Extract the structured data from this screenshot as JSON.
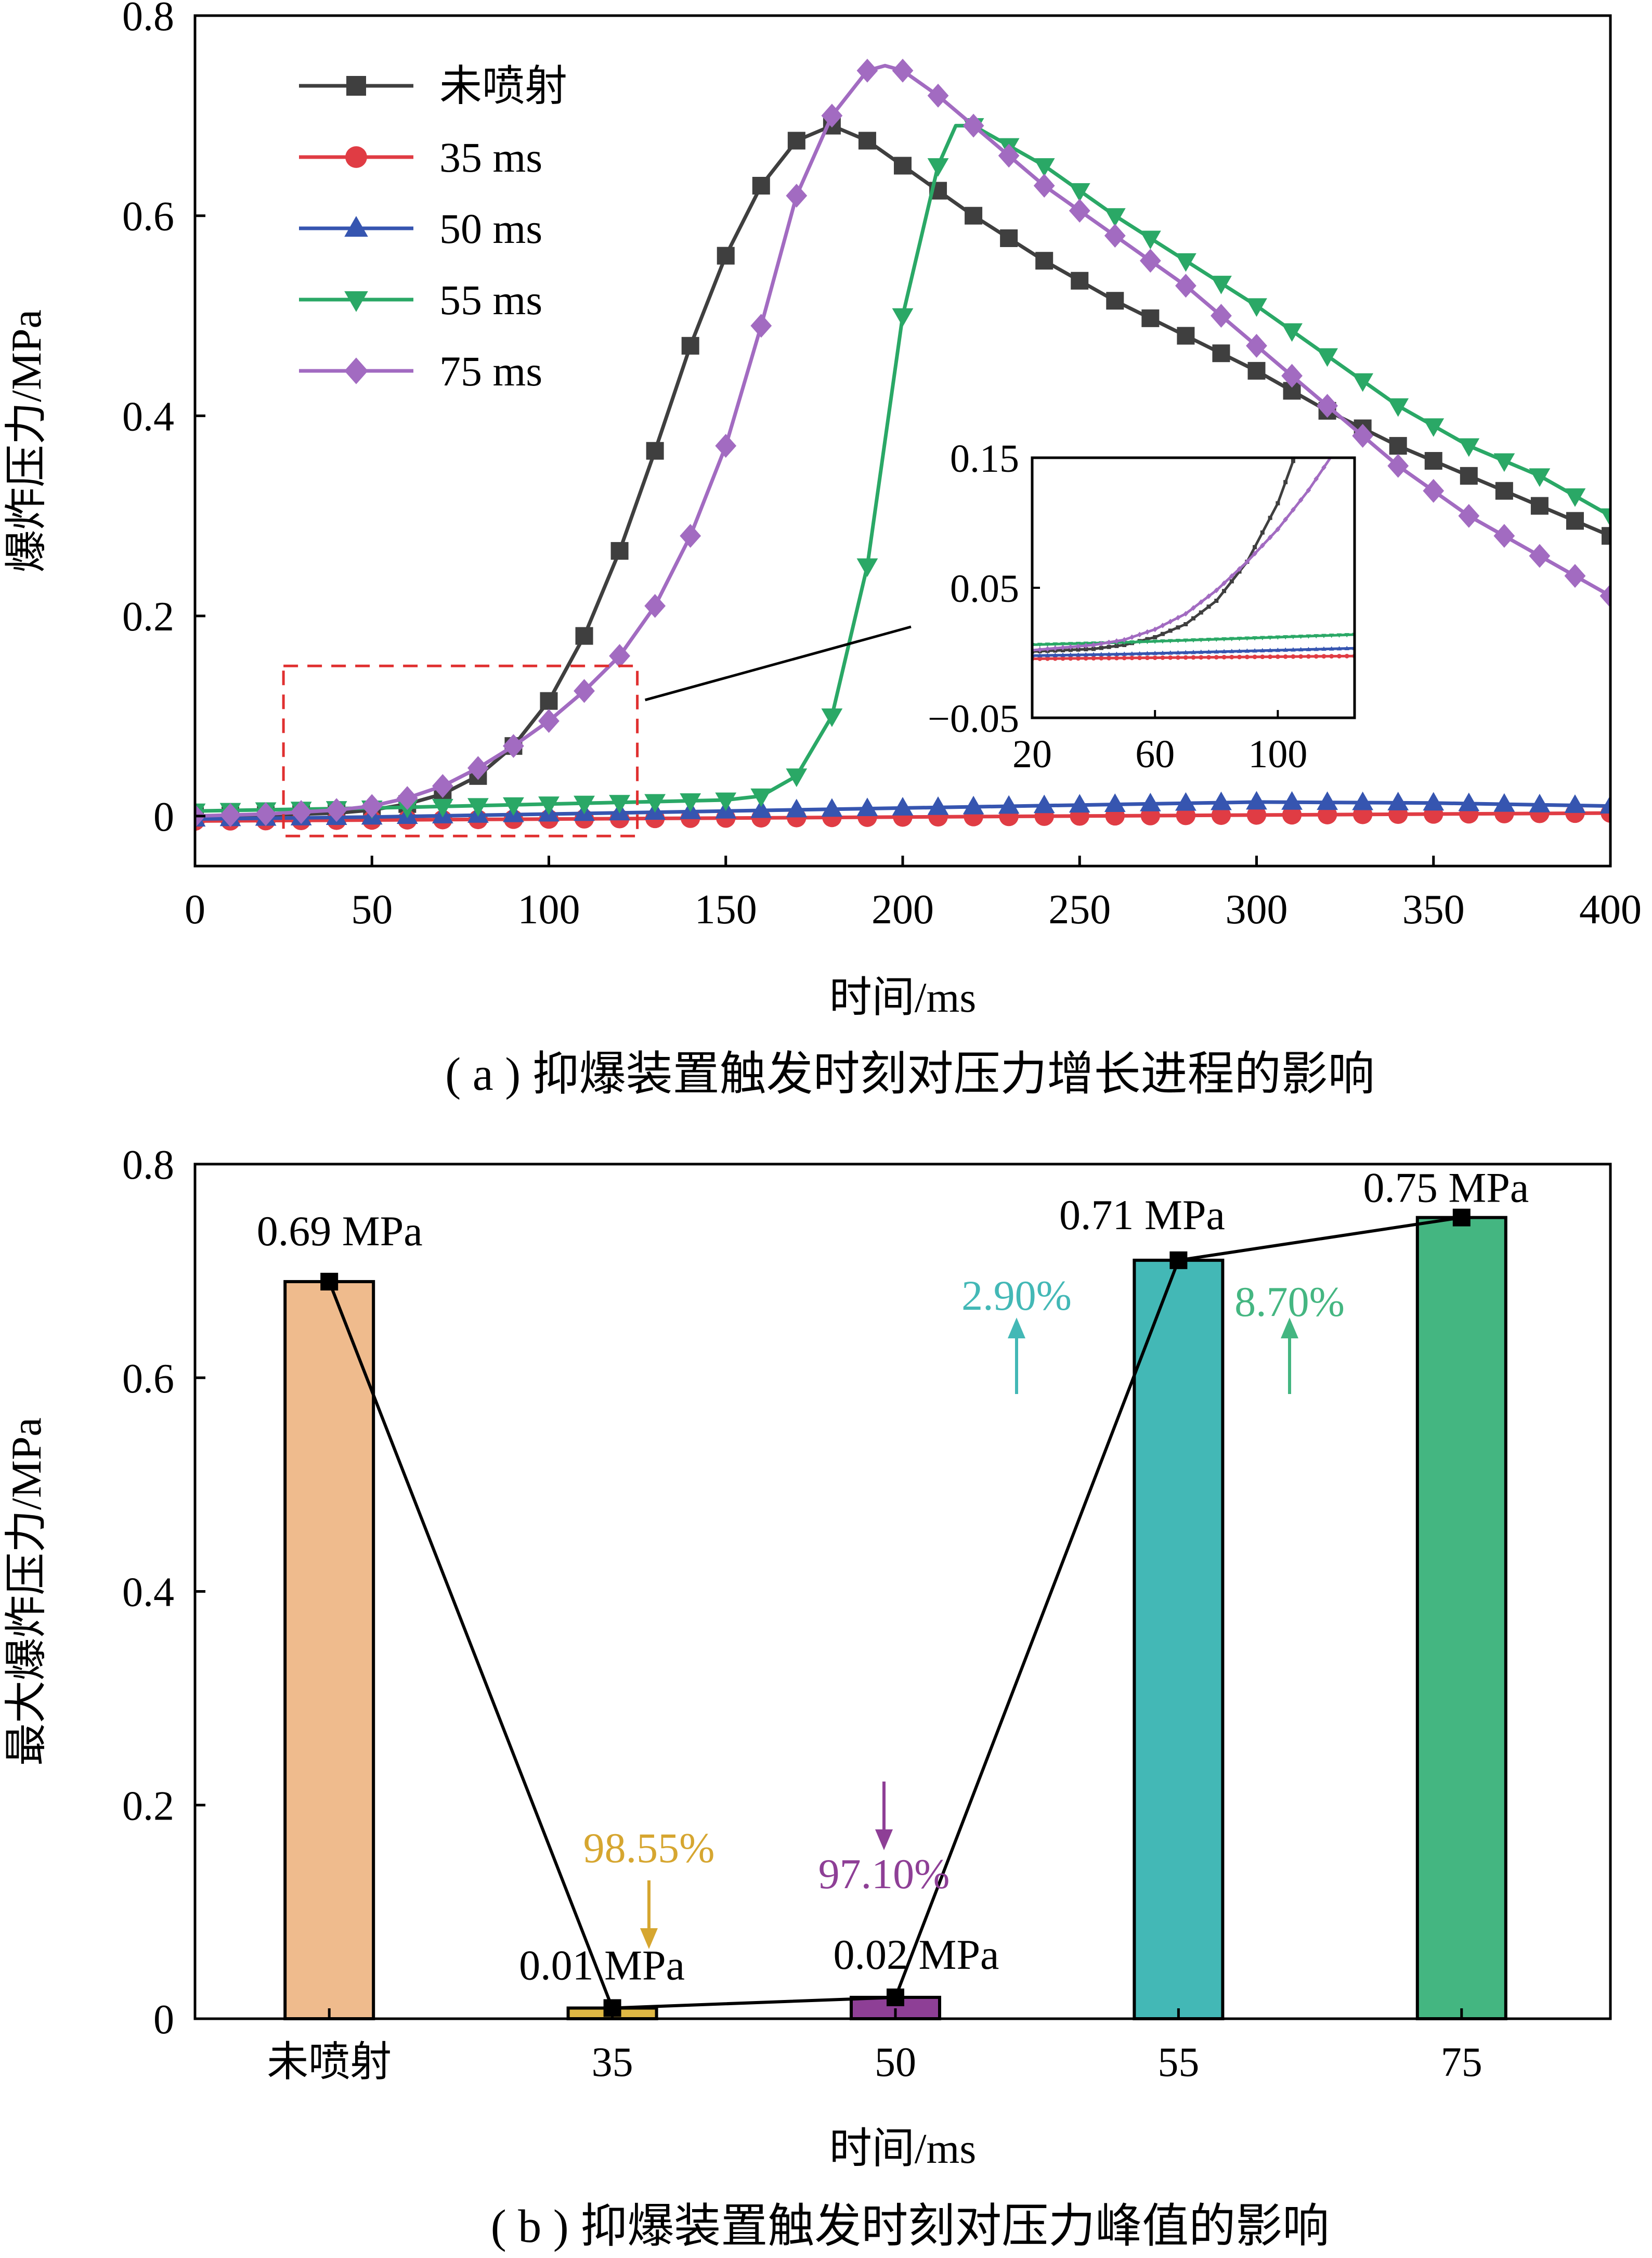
{
  "colors": {
    "unsprayed": "#3f3f3f",
    "ms35": "#e03c44",
    "ms50": "#3655b0",
    "ms55": "#2aa866",
    "ms75": "#a26bc1",
    "box": "#e03030",
    "bar_unsprayed": "#efbb8d",
    "bar_35": "#e0b844",
    "bar_50": "#8e3f96",
    "bar_55": "#43b8b6",
    "bar_75": "#44b681",
    "pct_35": "#d6a630",
    "pct_50": "#8e3f96",
    "pct_55": "#43b8b6",
    "pct_75": "#44b681"
  },
  "chart_data": [
    {
      "type": "line",
      "caption": "( a ) 抑爆装置触发时刻对压力增长进程的影响",
      "xlabel": "时间/ms",
      "ylabel": "爆炸压力/MPa",
      "xlim": [
        0,
        400
      ],
      "ylim": [
        -0.05,
        0.8
      ],
      "xticks": [
        0,
        50,
        100,
        150,
        200,
        250,
        300,
        350,
        400
      ],
      "yticks": [
        0,
        0.2,
        0.4,
        0.6,
        0.8
      ],
      "ytick_labels": [
        "0",
        "0.2",
        "0.4",
        "0.6",
        "0.8"
      ],
      "legend_position": "top-left",
      "series": [
        {
          "name": "未喷射",
          "color_key": "unsprayed",
          "marker": "square",
          "x": [
            0,
            20,
            40,
            50,
            60,
            70,
            80,
            90,
            100,
            110,
            120,
            130,
            140,
            150,
            160,
            170,
            180,
            190,
            200,
            220,
            240,
            260,
            280,
            300,
            320,
            340,
            360,
            380,
            400
          ],
          "y": [
            0,
            0.001,
            0.003,
            0.006,
            0.012,
            0.022,
            0.04,
            0.07,
            0.115,
            0.18,
            0.265,
            0.365,
            0.47,
            0.56,
            0.63,
            0.675,
            0.69,
            0.675,
            0.65,
            0.6,
            0.555,
            0.515,
            0.48,
            0.445,
            0.405,
            0.37,
            0.34,
            0.31,
            0.28
          ]
        },
        {
          "name": "35 ms",
          "color_key": "ms35",
          "marker": "circle",
          "x": [
            0,
            50,
            100,
            150,
            200,
            250,
            300,
            350,
            400
          ],
          "y": [
            -0.005,
            -0.004,
            -0.003,
            -0.002,
            -0.001,
            0,
            0.001,
            0.002,
            0.003
          ]
        },
        {
          "name": "50 ms",
          "color_key": "ms50",
          "marker": "triangle-up",
          "x": [
            0,
            50,
            100,
            150,
            200,
            250,
            300,
            350,
            400
          ],
          "y": [
            -0.003,
            -0.001,
            0.002,
            0.005,
            0.008,
            0.011,
            0.014,
            0.013,
            0.01
          ]
        },
        {
          "name": "55 ms",
          "color_key": "ms55",
          "marker": "triangle-down",
          "x": [
            0,
            50,
            100,
            150,
            160,
            170,
            180,
            190,
            200,
            210,
            215,
            220,
            240,
            260,
            280,
            300,
            320,
            340,
            360,
            380,
            400
          ],
          "y": [
            0.005,
            0.008,
            0.012,
            0.016,
            0.02,
            0.04,
            0.1,
            0.25,
            0.5,
            0.65,
            0.69,
            0.69,
            0.65,
            0.6,
            0.555,
            0.51,
            0.46,
            0.41,
            0.37,
            0.34,
            0.3
          ]
        },
        {
          "name": "75 ms",
          "color_key": "ms75",
          "marker": "diamond",
          "x": [
            0,
            20,
            40,
            50,
            60,
            70,
            80,
            90,
            100,
            110,
            120,
            130,
            140,
            150,
            160,
            170,
            180,
            190,
            195,
            200,
            210,
            220,
            240,
            260,
            280,
            300,
            320,
            340,
            360,
            380,
            400
          ],
          "y": [
            0,
            0.002,
            0.006,
            0.01,
            0.018,
            0.03,
            0.048,
            0.07,
            0.095,
            0.125,
            0.16,
            0.21,
            0.28,
            0.37,
            0.49,
            0.62,
            0.7,
            0.745,
            0.75,
            0.745,
            0.72,
            0.69,
            0.63,
            0.58,
            0.53,
            0.47,
            0.41,
            0.35,
            0.3,
            0.26,
            0.22
          ]
        }
      ],
      "inset": {
        "xlim": [
          20,
          125
        ],
        "ylim": [
          -0.05,
          0.15
        ],
        "xticks": [
          20,
          60,
          100
        ],
        "yticks": [
          -0.05,
          0.05,
          0.15
        ],
        "ytick_labels": [
          "−0.05",
          "0.05",
          "0.15"
        ]
      },
      "zoom_box": {
        "xlim": [
          25,
          125
        ],
        "ylim": [
          -0.02,
          0.15
        ]
      }
    },
    {
      "type": "bar",
      "caption": "( b ) 抑爆装置触发时刻对压力峰值的影响",
      "xlabel": "时间/ms",
      "ylabel": "最大爆炸压力/MPa",
      "ylim": [
        0,
        0.8
      ],
      "yticks": [
        0,
        0.2,
        0.4,
        0.6,
        0.8
      ],
      "ytick_labels": [
        "0",
        "0.2",
        "0.4",
        "0.6",
        "0.8"
      ],
      "categories": [
        "未喷射",
        "35",
        "50",
        "55",
        "75"
      ],
      "values": [
        0.69,
        0.01,
        0.02,
        0.71,
        0.75
      ],
      "value_labels": [
        "0.69 MPa",
        "0.01 MPa",
        "0.02 MPa",
        "0.71 MPa",
        "0.75 MPa"
      ],
      "bar_color_keys": [
        "bar_unsprayed",
        "bar_35",
        "bar_50",
        "bar_55",
        "bar_75"
      ],
      "changes": [
        {
          "category": "35",
          "label": "98.55%",
          "direction": "down",
          "color_key": "pct_35"
        },
        {
          "category": "50",
          "label": "97.10%",
          "direction": "down",
          "color_key": "pct_50"
        },
        {
          "category": "55",
          "label": "2.90%",
          "direction": "up",
          "color_key": "pct_55"
        },
        {
          "category": "75",
          "label": "8.70%",
          "direction": "up",
          "color_key": "pct_75"
        }
      ]
    }
  ]
}
